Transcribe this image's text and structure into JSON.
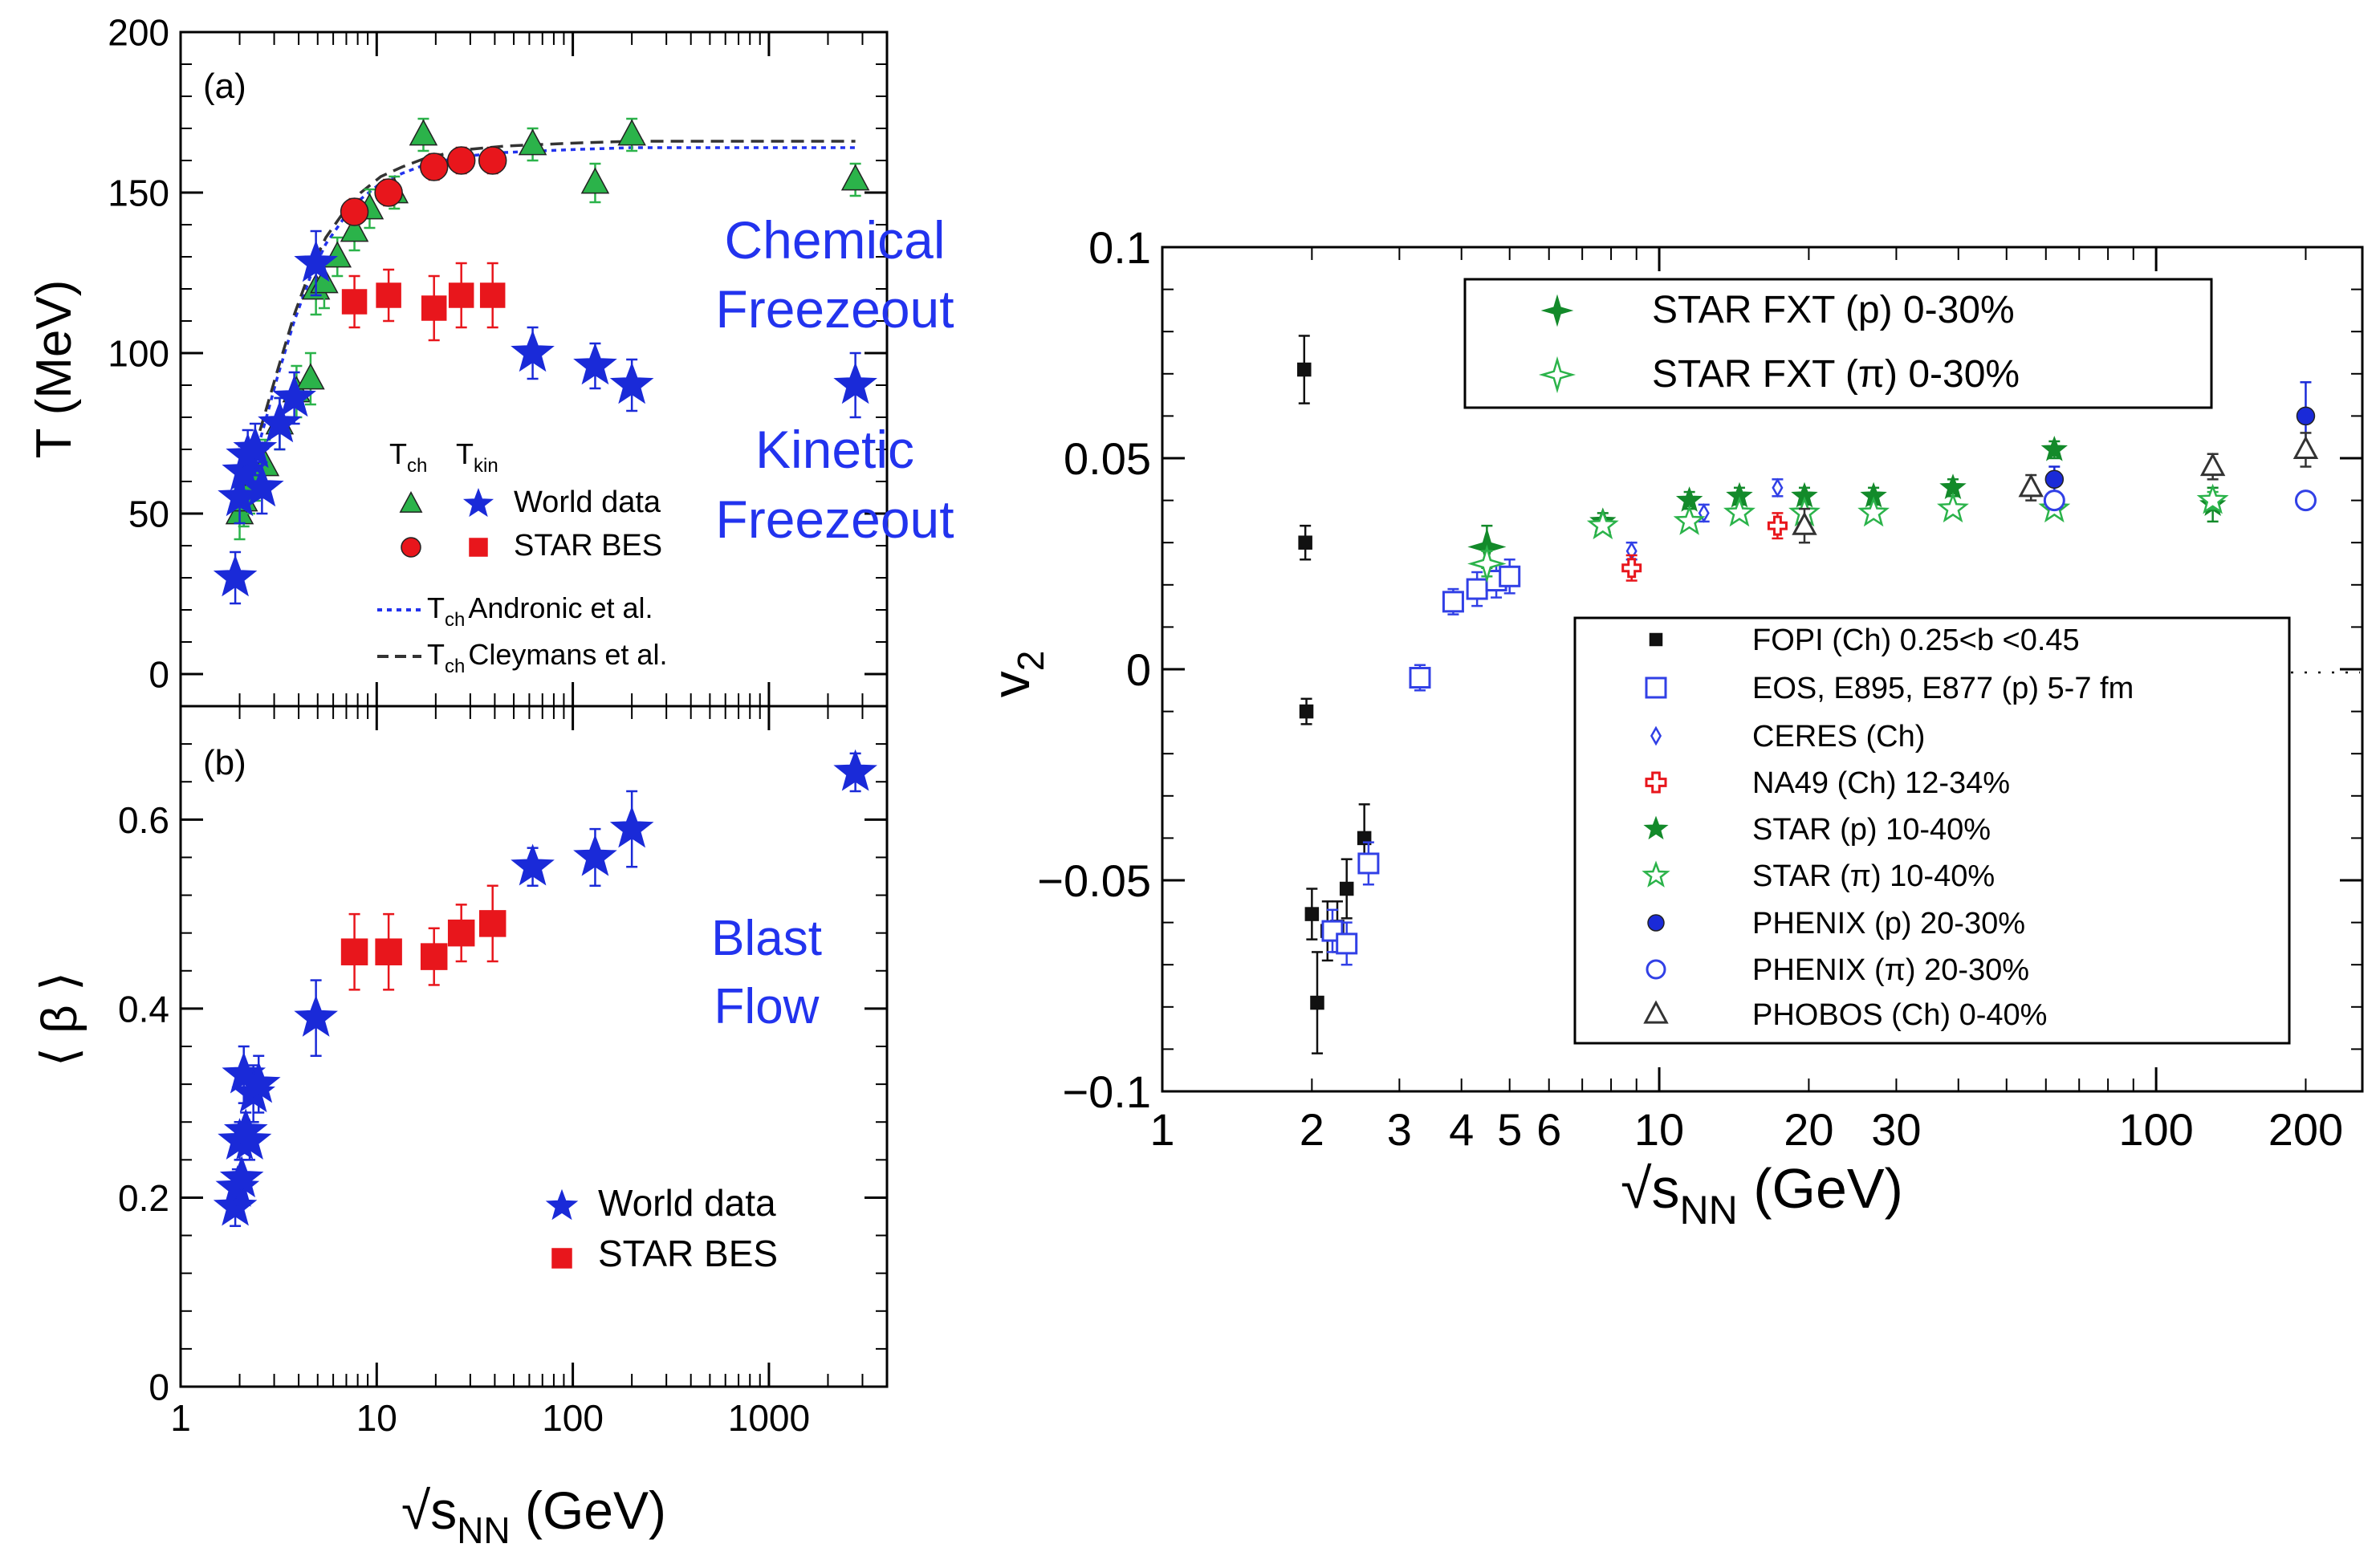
{
  "chart_data": [
    {
      "type": "scatter",
      "panel": "a",
      "panel_label": "(a)",
      "xscale": "log",
      "xlim": [
        1,
        4000
      ],
      "ylim": [
        -10,
        200
      ],
      "ylabel": "T (MeV)",
      "yticks": [
        0,
        50,
        100,
        150,
        200
      ],
      "yticklabels": [
        "0",
        "50",
        "100",
        "150",
        "200"
      ],
      "annotations": {
        "chemical_line1": "Chemical",
        "chemical_line2": "Freezeout",
        "kinetic_line1": "Kinetic",
        "kinetic_line2": "Freezeout"
      },
      "legend": {
        "tch_header": "T",
        "tch_sub": "ch",
        "tkin_header": "T",
        "tkin_sub": "kin",
        "world": "World data",
        "star": "STAR BES",
        "andronic_T": "T",
        "andronic_sub": "ch",
        "andronic_text": "Andronic et al.",
        "cleymans_T": "T",
        "cleymans_sub": "ch",
        "cleymans_text": "Cleymans et al."
      },
      "curves": [
        {
          "name": "Andronic et al.",
          "color": "#2233ee",
          "style": "dotted",
          "x": [
            1.9,
            2.2,
            2.6,
            3.1,
            3.8,
            4.6,
            5.5,
            6.8,
            8.3,
            10.5,
            13.5,
            17.3,
            22,
            30,
            45,
            70,
            110,
            200,
            500,
            1000,
            2000,
            2760
          ],
          "y": [
            48,
            60,
            75,
            92,
            110,
            124,
            134,
            142,
            148,
            153,
            156,
            158.5,
            160,
            161.5,
            162.5,
            163,
            163.5,
            164,
            164,
            164,
            164,
            164
          ]
        },
        {
          "name": "Cleymans et al.",
          "color": "#333333",
          "style": "dashed",
          "x": [
            1.9,
            2.2,
            2.6,
            3.1,
            3.8,
            4.6,
            5.5,
            6.8,
            8.3,
            10.5,
            13.5,
            17.3,
            22,
            30,
            45,
            70,
            110,
            200,
            500,
            1000,
            2000,
            2760
          ],
          "y": [
            52,
            63,
            78,
            94,
            112,
            126,
            136,
            144,
            150,
            155,
            158,
            160.5,
            162,
            163.5,
            164.5,
            165,
            165.5,
            166,
            166,
            166,
            166,
            166
          ]
        }
      ],
      "series": [
        {
          "name": "Tch World data",
          "marker": "triangle",
          "color": "#2bb34a",
          "x": [
            2.0,
            2.1,
            2.25,
            2.4,
            2.7,
            3.2,
            3.9,
            4.6,
            4.9,
            5.4,
            6.3,
            7.7,
            9.2,
            12.3,
            17.3,
            62.4,
            130,
            200,
            2760
          ],
          "y": [
            50,
            54,
            58,
            62,
            65,
            78,
            88,
            92,
            120,
            122,
            130,
            138,
            145,
            150,
            168,
            165,
            153,
            168,
            154
          ],
          "err": [
            8,
            8,
            8,
            8,
            8,
            8,
            8,
            8,
            8,
            8,
            6,
            6,
            6,
            5,
            5,
            5,
            6,
            5,
            5
          ]
        },
        {
          "name": "Tch STAR BES",
          "marker": "circle",
          "color": "#e8161c",
          "x": [
            7.7,
            11.5,
            19.6,
            27,
            39
          ],
          "y": [
            144,
            150,
            158,
            160,
            160
          ],
          "err": [
            4,
            4,
            4,
            4,
            4
          ]
        },
        {
          "name": "Tkin World data",
          "marker": "star",
          "color": "#1a2ad8",
          "x": [
            1.9,
            2.0,
            2.1,
            2.2,
            2.4,
            2.6,
            3.2,
            3.8,
            4.9,
            62.4,
            130,
            200,
            2760
          ],
          "y": [
            30,
            55,
            63,
            68,
            70,
            58,
            78,
            86,
            128,
            100,
            96,
            90,
            90
          ],
          "err": [
            8,
            8,
            8,
            8,
            8,
            8,
            8,
            8,
            10,
            8,
            7,
            8,
            10
          ]
        },
        {
          "name": "Tkin STAR BES",
          "marker": "square",
          "color": "#e8161c",
          "x": [
            7.7,
            11.5,
            19.6,
            27,
            39
          ],
          "y": [
            116,
            118,
            114,
            118,
            118
          ],
          "err": [
            8,
            8,
            10,
            10,
            10
          ]
        }
      ]
    },
    {
      "type": "scatter",
      "panel": "b",
      "panel_label": "(b)",
      "xscale": "log",
      "xlim": [
        1,
        4000
      ],
      "ylim": [
        0,
        0.72
      ],
      "ylabel": "⟨ β ⟩",
      "xlabel": "√s",
      "xlabel_sub": "NN",
      "xlabel_unit": " (GeV)",
      "yticks": [
        0,
        0.2,
        0.4,
        0.6
      ],
      "yticklabels": [
        "0",
        "0.2",
        "0.4",
        "0.6"
      ],
      "xticks": [
        1,
        10,
        100,
        1000
      ],
      "xticklabels": [
        "1",
        "10",
        "100",
        "1000"
      ],
      "annotations": {
        "line1": "Blast",
        "line2": "Flow"
      },
      "legend": {
        "world": "World data",
        "star": "STAR BES"
      },
      "series": [
        {
          "name": "World data",
          "marker": "star",
          "color": "#1a2ad8",
          "x": [
            1.9,
            1.95,
            2.0,
            2.05,
            2.1,
            2.15,
            2.25,
            2.35,
            2.5,
            4.9,
            62.4,
            130,
            200,
            2760
          ],
          "y": [
            0.19,
            0.21,
            0.26,
            0.22,
            0.33,
            0.27,
            0.26,
            0.31,
            0.32,
            0.39,
            0.55,
            0.56,
            0.59,
            0.65
          ],
          "err": [
            0.02,
            0.02,
            0.02,
            0.02,
            0.03,
            0.02,
            0.02,
            0.03,
            0.03,
            0.04,
            0.02,
            0.03,
            0.04,
            0.02
          ]
        },
        {
          "name": "STAR BES",
          "marker": "square",
          "color": "#e8161c",
          "x": [
            7.7,
            11.5,
            19.6,
            27,
            39
          ],
          "y": [
            0.46,
            0.46,
            0.455,
            0.48,
            0.49
          ],
          "err": [
            0.04,
            0.04,
            0.03,
            0.03,
            0.04
          ]
        }
      ]
    },
    {
      "type": "scatter",
      "panel": "c",
      "xscale": "log",
      "xlim": [
        1,
        260
      ],
      "ylim": [
        -0.1,
        0.1
      ],
      "ylabel": "v",
      "ylabel_sub": "2",
      "xlabel": "√s",
      "xlabel_sub": "NN",
      "xlabel_unit": " (GeV)",
      "yticks": [
        -0.1,
        -0.05,
        0,
        0.05,
        0.1
      ],
      "yticklabels": [
        "−0.1",
        "−0.05",
        "0",
        "0.05",
        "0.1"
      ],
      "xticks": [
        1,
        2,
        3,
        4,
        5,
        6,
        10,
        20,
        30,
        100,
        200
      ],
      "xticklabels": [
        "1",
        "2",
        "3",
        "4",
        "5",
        "6",
        "10",
        "20",
        "30",
        "100",
        "200"
      ],
      "legend_top": [
        "STAR FXT (p) 0-30%",
        "STAR FXT (π) 0-30%"
      ],
      "legend_main": [
        "FOPI (Ch)  0.25<b  <0.45",
        "EOS, E895, E877 (p)  5-7 fm",
        "CERES (Ch)",
        "NA49 (Ch)  12-34%",
        "STAR (p)  10-40%",
        "STAR (π)  10-40%",
        "PHENIX (p)  20-30%",
        "PHENIX (π)  20-30%",
        "PHOBOS (Ch) 0-40%"
      ],
      "series": [
        {
          "name": "FOPI (Ch)",
          "marker": "square",
          "color": "#111111",
          "x": [
            1.93,
            1.94,
            1.95,
            2.0,
            2.05,
            2.15,
            2.25,
            2.35,
            2.55
          ],
          "y": [
            0.071,
            0.03,
            -0.01,
            -0.058,
            -0.079,
            -0.062,
            -0.061,
            -0.052,
            -0.04
          ],
          "err": [
            0.008,
            0.004,
            0.003,
            0.006,
            0.012,
            0.007,
            0.006,
            0.007,
            0.008
          ]
        },
        {
          "name": "EOS, E895, E877 (p)",
          "marker": "square_open",
          "color": "#3140e6",
          "x": [
            2.2,
            2.35,
            2.6,
            3.3,
            3.85,
            4.3,
            4.7,
            5.0
          ],
          "y": [
            -0.062,
            -0.065,
            -0.046,
            -0.002,
            0.016,
            0.019,
            0.021,
            0.022
          ],
          "err": [
            0.005,
            0.005,
            0.005,
            0.003,
            0.003,
            0.004,
            0.004,
            0.004
          ]
        },
        {
          "name": "CERES (Ch)",
          "marker": "diamond_open",
          "color": "#3140e6",
          "x": [
            8.8,
            12.3,
            17.3
          ],
          "y": [
            0.028,
            0.037,
            0.043
          ],
          "err": [
            0.002,
            0.002,
            0.002
          ]
        },
        {
          "name": "NA49 (Ch)",
          "marker": "cross_open",
          "color": "#e8161c",
          "x": [
            8.8,
            17.3
          ],
          "y": [
            0.024,
            0.034
          ],
          "err": [
            0.003,
            0.003
          ]
        },
        {
          "name": "STAR (p)",
          "marker": "star",
          "color": "#138a2a",
          "x": [
            7.7,
            11.5,
            14.5,
            19.6,
            27,
            39,
            62.4,
            130
          ],
          "y": [
            0.035,
            0.04,
            0.041,
            0.041,
            0.041,
            0.043,
            0.052,
            0.039
          ],
          "err": [
            0.002,
            0.002,
            0.002,
            0.002,
            0.002,
            0.002,
            0.002,
            0.004
          ]
        },
        {
          "name": "STAR (π)",
          "marker": "star_open",
          "color": "#2bb34a",
          "x": [
            7.7,
            11.5,
            14.5,
            19.6,
            27,
            39,
            62.4,
            130
          ],
          "y": [
            0.034,
            0.035,
            0.037,
            0.037,
            0.037,
            0.038,
            0.038,
            0.04
          ],
          "err": [
            0.001,
            0.001,
            0.001,
            0.001,
            0.001,
            0.001,
            0.001,
            0.002
          ]
        },
        {
          "name": "PHENIX (p)",
          "marker": "circle",
          "color": "#1a2ad8",
          "x": [
            62.4,
            200
          ],
          "y": [
            0.045,
            0.06
          ],
          "err": [
            0.003,
            0.008
          ]
        },
        {
          "name": "PHENIX (π)",
          "marker": "circle_open",
          "color": "#3140e6",
          "x": [
            62.4,
            200
          ],
          "y": [
            0.04,
            0.04
          ],
          "err": [
            0.002,
            0.002
          ]
        },
        {
          "name": "PHOBOS (Ch)",
          "marker": "triangle_open",
          "color": "#333333",
          "x": [
            19.6,
            56,
            130,
            200
          ],
          "y": [
            0.034,
            0.043,
            0.048,
            0.052
          ],
          "err": [
            0.004,
            0.003,
            0.003,
            0.004
          ]
        },
        {
          "name": "STAR FXT (p) 0-30%",
          "marker": "star4",
          "color": "#138a2a",
          "x": [
            4.5
          ],
          "y": [
            0.029
          ],
          "err": [
            0.005
          ]
        },
        {
          "name": "STAR FXT (π) 0-30%",
          "marker": "star4_open",
          "color": "#2bb34a",
          "x": [
            4.5
          ],
          "y": [
            0.025
          ],
          "err": [
            0.003
          ]
        }
      ]
    }
  ]
}
